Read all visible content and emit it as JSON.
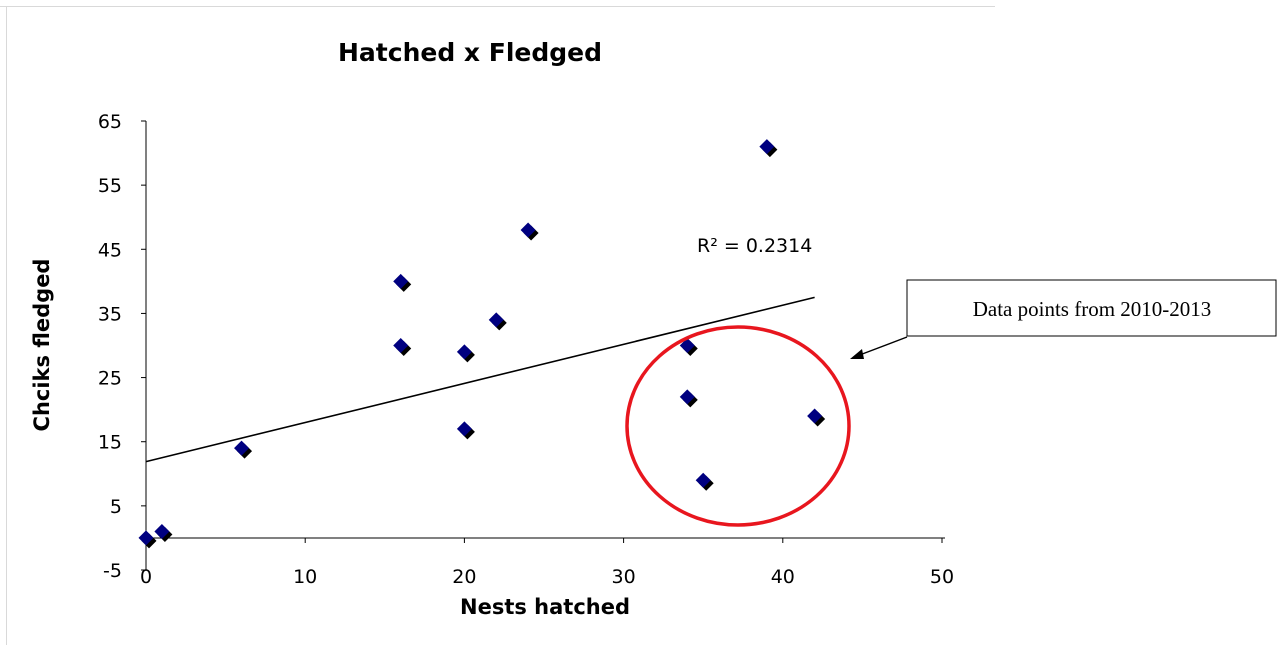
{
  "chart_data": {
    "type": "scatter",
    "title": "Hatched x Fledged",
    "xlabel": "Nests hatched",
    "ylabel": "Chciks fledged",
    "xlim": [
      0,
      50
    ],
    "ylim": [
      -5,
      65
    ],
    "xticks": [
      "0",
      "10",
      "20",
      "30",
      "40",
      "50"
    ],
    "yticks": [
      "-5",
      "5",
      "15",
      "25",
      "35",
      "45",
      "55",
      "65"
    ],
    "grid": false,
    "points": [
      {
        "x": 0,
        "y": 0
      },
      {
        "x": 1,
        "y": 1
      },
      {
        "x": 6,
        "y": 14
      },
      {
        "x": 16,
        "y": 40
      },
      {
        "x": 16,
        "y": 30
      },
      {
        "x": 20,
        "y": 29
      },
      {
        "x": 20,
        "y": 17
      },
      {
        "x": 22,
        "y": 34
      },
      {
        "x": 24,
        "y": 48
      },
      {
        "x": 34,
        "y": 30
      },
      {
        "x": 34,
        "y": 22
      },
      {
        "x": 35,
        "y": 9
      },
      {
        "x": 39,
        "y": 61
      },
      {
        "x": 42,
        "y": 19
      }
    ],
    "trendline": {
      "type": "linear",
      "x": [
        0,
        42
      ],
      "y": [
        11.9,
        37.5
      ]
    },
    "r_squared_label": "R² = 0.2314",
    "annotation": {
      "text": "Data points from 2010-2013",
      "highlight": "circle around points from 2010-2013"
    },
    "colors": {
      "marker": "#000080",
      "marker_shadow": "#000000",
      "trendline": "#000000",
      "highlight_circle": "#e8161e"
    }
  }
}
